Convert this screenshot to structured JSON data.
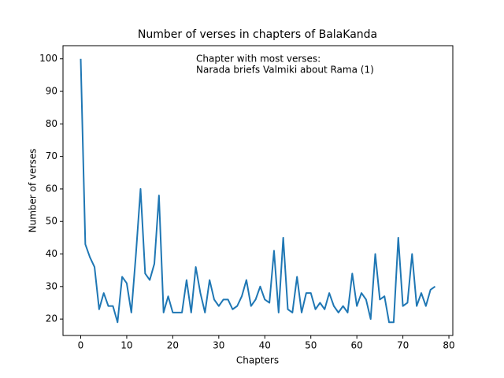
{
  "chart_data": {
    "type": "line",
    "title": "Number of verses in chapters of BalaKanda",
    "xlabel": "Chapters",
    "ylabel": "Number of verses",
    "annotation": [
      "Chapter with most verses:",
      "Narada briefs Valmiki about Rama (1)"
    ],
    "x": [
      0,
      1,
      2,
      3,
      4,
      5,
      6,
      7,
      8,
      9,
      10,
      11,
      12,
      13,
      14,
      15,
      16,
      17,
      18,
      19,
      20,
      21,
      22,
      23,
      24,
      25,
      26,
      27,
      28,
      29,
      30,
      31,
      32,
      33,
      34,
      35,
      36,
      37,
      38,
      39,
      40,
      41,
      42,
      43,
      44,
      45,
      46,
      47,
      48,
      49,
      50,
      51,
      52,
      53,
      54,
      55,
      56,
      57,
      58,
      59,
      60,
      61,
      62,
      63,
      64,
      65,
      66,
      67,
      68,
      69,
      70,
      71,
      72,
      73,
      74,
      75,
      76,
      77
    ],
    "series": [
      {
        "name": "Verses",
        "color": "#1f77b4",
        "values": [
          100,
          43,
          39,
          36,
          23,
          28,
          24,
          24,
          19,
          33,
          31,
          22,
          40,
          60,
          34,
          32,
          37,
          58,
          22,
          27,
          22,
          22,
          22,
          32,
          22,
          36,
          28,
          22,
          32,
          26,
          24,
          26,
          26,
          23,
          24,
          27,
          32,
          24,
          26,
          30,
          26,
          25,
          41,
          22,
          45,
          23,
          22,
          33,
          22,
          28,
          28,
          23,
          25,
          23,
          28,
          24,
          22,
          24,
          22,
          34,
          24,
          28,
          26,
          20,
          40,
          26,
          27,
          19,
          19,
          45,
          24,
          25,
          40,
          24,
          28,
          24,
          29,
          30
        ]
      }
    ],
    "xlim": [
      -3.85,
      80.85
    ],
    "ylim": [
      14.95,
      104.05
    ],
    "xticks": [
      0,
      10,
      20,
      30,
      40,
      50,
      60,
      70,
      80
    ],
    "yticks": [
      20,
      30,
      40,
      50,
      60,
      70,
      80,
      90,
      100
    ]
  }
}
